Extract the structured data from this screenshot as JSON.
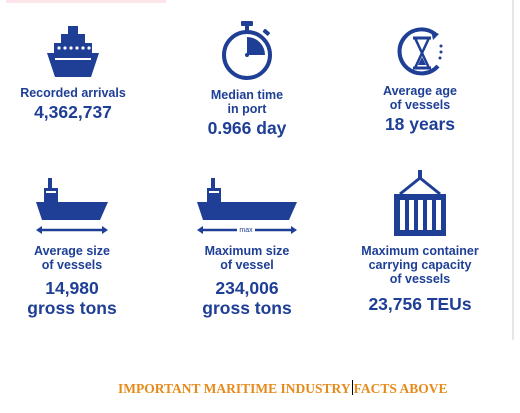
{
  "colors": {
    "accent": "#1e3f95",
    "footer": "#e68a1a"
  },
  "stats": [
    {
      "icon": "cruise-ship-icon",
      "label": "Recorded arrivals",
      "value": "4,362,737"
    },
    {
      "icon": "stopwatch-icon",
      "label_line1": "Median time",
      "label_line2": "in port",
      "value": "0.966 day"
    },
    {
      "icon": "age-hourglass-icon",
      "label_line1": "Average age",
      "label_line2": "of vessels",
      "value": "18 years"
    },
    {
      "icon": "cargo-ship-icon",
      "label_line1": "Average size",
      "label_line2": "of vessels",
      "value_line1": "14,980",
      "value_line2": "gross tons"
    },
    {
      "icon": "large-cargo-ship-icon",
      "icon_text": "max",
      "label_line1": "Maximum size",
      "label_line2": "of vessel",
      "value_line1": "234,006",
      "value_line2": "gross tons"
    },
    {
      "icon": "container-crane-icon",
      "label_line1": "Maximum container",
      "label_line2": "carrying capacity",
      "label_line3": "of vessels",
      "value": "23,756 TEUs"
    }
  ],
  "footer": {
    "part1": "IMPORTANT MARITIME INDUSTRY",
    "part2": "FACTS ABOVE"
  }
}
